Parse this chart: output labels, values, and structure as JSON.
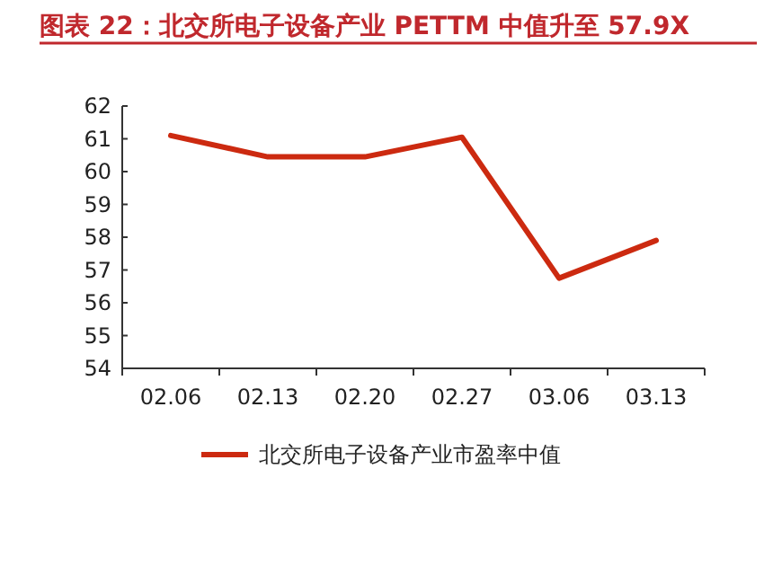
{
  "chart_data": {
    "type": "line",
    "title": "图表 22：北交所电子设备产业 PETTM 中值升至 57.9X",
    "categories": [
      "02.06",
      "02.13",
      "02.20",
      "02.27",
      "03.06",
      "03.13"
    ],
    "series": [
      {
        "name": "北交所电子设备产业市盈率中值",
        "color": "#cc2a10",
        "values": [
          61.1,
          60.45,
          60.45,
          61.05,
          56.75,
          57.9
        ]
      }
    ],
    "ylim": [
      54,
      62
    ],
    "yticks": [
      54,
      55,
      56,
      57,
      58,
      59,
      60,
      61,
      62
    ],
    "grid": false,
    "legend": "bottom",
    "marker": "none",
    "line_style": "solid"
  }
}
